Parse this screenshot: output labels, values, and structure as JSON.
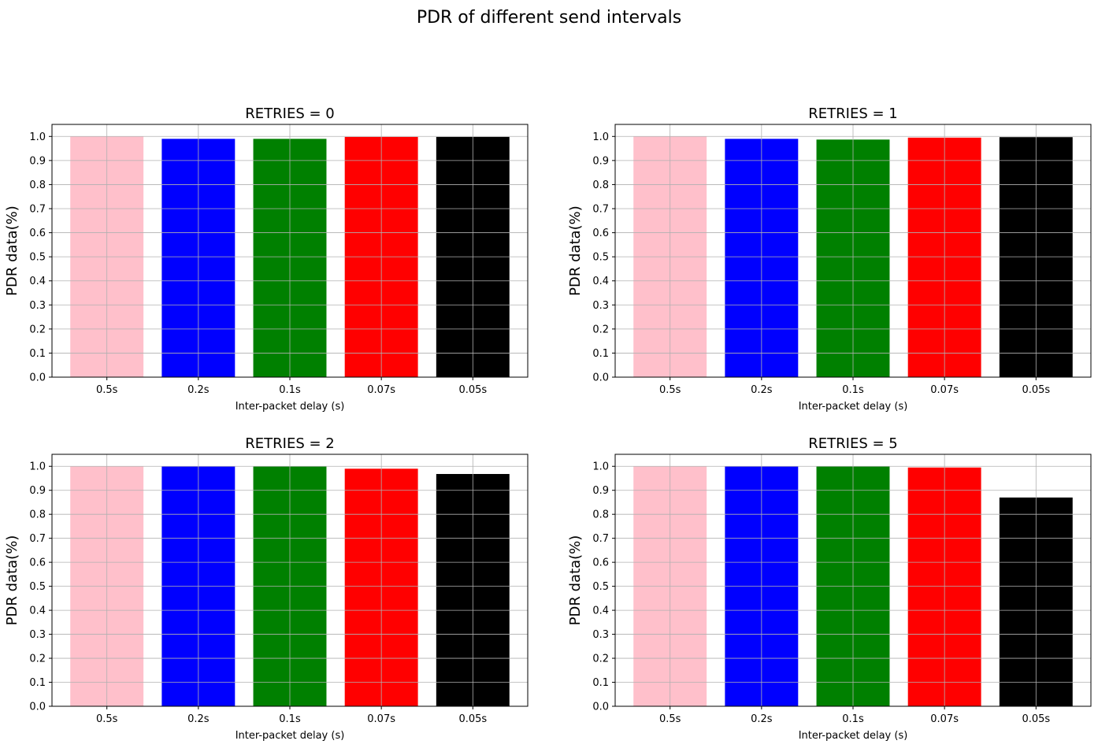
{
  "title": "PDR of different send intervals",
  "chart_data": [
    {
      "type": "bar",
      "title": "RETRIES = 0",
      "categories": [
        "0.5s",
        "0.2s",
        "0.1s",
        "0.07s",
        "0.05s"
      ],
      "values": [
        1.0,
        0.99,
        0.99,
        0.998,
        0.998
      ],
      "colors": [
        "#ffc0cb",
        "#0000ff",
        "#008000",
        "#ff0000",
        "#000000"
      ],
      "xlabel": "Inter-packet delay (s)",
      "ylabel": "PDR data(%)",
      "ylim": [
        0,
        1.05
      ],
      "yticks": [
        "0.0",
        "0.1",
        "0.2",
        "0.3",
        "0.4",
        "0.5",
        "0.6",
        "0.7",
        "0.8",
        "0.9",
        "1.0"
      ],
      "grid": true
    },
    {
      "type": "bar",
      "title": "RETRIES = 1",
      "categories": [
        "0.5s",
        "0.2s",
        "0.1s",
        "0.07s",
        "0.05s"
      ],
      "values": [
        1.0,
        0.99,
        0.987,
        0.995,
        0.997
      ],
      "colors": [
        "#ffc0cb",
        "#0000ff",
        "#008000",
        "#ff0000",
        "#000000"
      ],
      "xlabel": "Inter-packet delay (s)",
      "ylabel": "PDR data(%)",
      "ylim": [
        0,
        1.05
      ],
      "yticks": [
        "0.0",
        "0.1",
        "0.2",
        "0.3",
        "0.4",
        "0.5",
        "0.6",
        "0.7",
        "0.8",
        "0.9",
        "1.0"
      ],
      "grid": true
    },
    {
      "type": "bar",
      "title": "RETRIES = 2",
      "categories": [
        "0.5s",
        "0.2s",
        "0.1s",
        "0.07s",
        "0.05s"
      ],
      "values": [
        1.0,
        1.0,
        1.0,
        0.99,
        0.968
      ],
      "colors": [
        "#ffc0cb",
        "#0000ff",
        "#008000",
        "#ff0000",
        "#000000"
      ],
      "xlabel": "Inter-packet delay (s)",
      "ylabel": "PDR data(%)",
      "ylim": [
        0,
        1.05
      ],
      "yticks": [
        "0.0",
        "0.1",
        "0.2",
        "0.3",
        "0.4",
        "0.5",
        "0.6",
        "0.7",
        "0.8",
        "0.9",
        "1.0"
      ],
      "grid": true
    },
    {
      "type": "bar",
      "title": "RETRIES = 5",
      "categories": [
        "0.5s",
        "0.2s",
        "0.1s",
        "0.07s",
        "0.05s"
      ],
      "values": [
        1.0,
        1.0,
        1.0,
        0.995,
        0.87
      ],
      "colors": [
        "#ffc0cb",
        "#0000ff",
        "#008000",
        "#ff0000",
        "#000000"
      ],
      "xlabel": "Inter-packet delay (s)",
      "ylabel": "PDR data(%)",
      "ylim": [
        0,
        1.05
      ],
      "yticks": [
        "0.0",
        "0.1",
        "0.2",
        "0.3",
        "0.4",
        "0.5",
        "0.6",
        "0.7",
        "0.8",
        "0.9",
        "1.0"
      ],
      "grid": true
    }
  ]
}
